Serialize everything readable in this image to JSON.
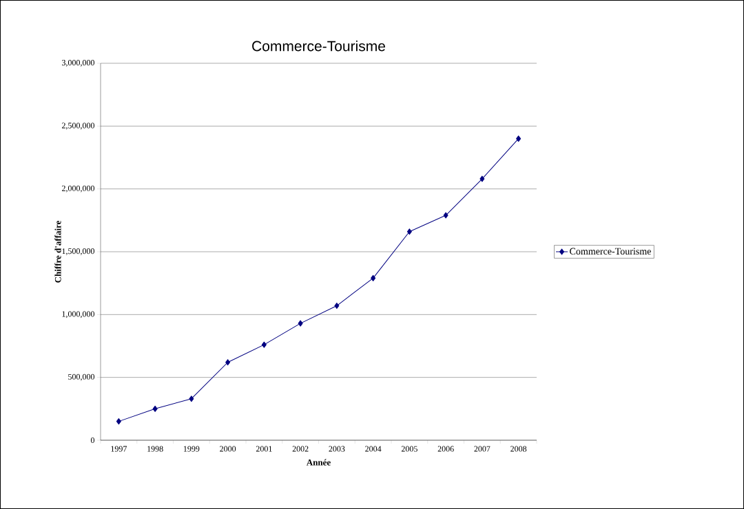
{
  "chart_data": {
    "type": "line",
    "title": "Commerce-Tourisme",
    "xlabel": "Année",
    "ylabel": "Chiffre d'affaire",
    "categories": [
      "1997",
      "1998",
      "1999",
      "2000",
      "2001",
      "2002",
      "2003",
      "2004",
      "2005",
      "2006",
      "2007",
      "2008"
    ],
    "series": [
      {
        "name": "Commerce-Tourisme",
        "color": "#000080",
        "values": [
          150000,
          250000,
          330000,
          620000,
          760000,
          930000,
          1070000,
          1290000,
          1660000,
          1790000,
          2080000,
          2400000
        ]
      }
    ],
    "ylim": [
      0,
      3000000
    ],
    "yticks": [
      {
        "value": 0,
        "label": "0"
      },
      {
        "value": 500000,
        "label": "500,000"
      },
      {
        "value": 1000000,
        "label": "1,000,000"
      },
      {
        "value": 1500000,
        "label": "1,500,000"
      },
      {
        "value": 2000000,
        "label": "2,000,000"
      },
      {
        "value": 2500000,
        "label": "2,500,000"
      },
      {
        "value": 3000000,
        "label": "3,000,000"
      }
    ],
    "grid": "y",
    "legend": "right",
    "marker": "diamond",
    "line_style": "solid"
  }
}
